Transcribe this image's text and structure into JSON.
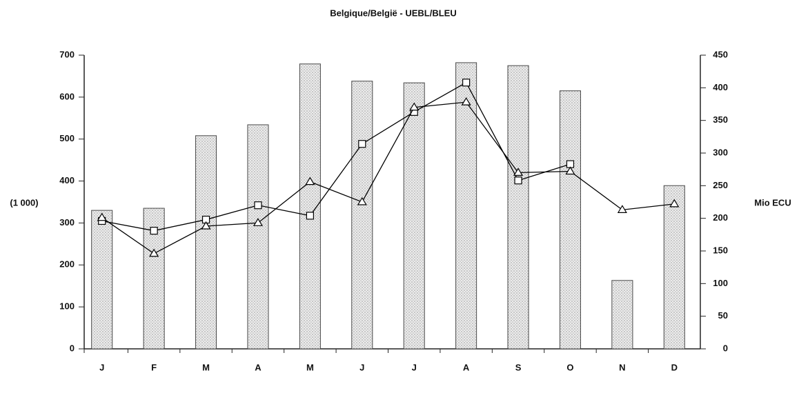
{
  "chart_data": {
    "type": "bar-line",
    "title": "Belgique/België - UEBL/BLEU",
    "y_label": "(1 000)",
    "y2_label": "Mio ECU",
    "categories": [
      "J",
      "F",
      "M",
      "A",
      "M",
      "J",
      "J",
      "A",
      "S",
      "O",
      "N",
      "D"
    ],
    "ylim": [
      0,
      700
    ],
    "yticks": [
      0,
      100,
      200,
      300,
      400,
      500,
      600,
      700
    ],
    "y2lim": [
      0,
      450
    ],
    "y2ticks": [
      0,
      50,
      100,
      150,
      200,
      250,
      300,
      350,
      400,
      450
    ],
    "series": [
      {
        "type": "bar",
        "color": "#d4d4d4",
        "values": [
          330,
          335,
          508,
          534,
          679,
          638,
          634,
          682,
          675,
          615,
          163,
          389
        ]
      },
      {
        "type": "line",
        "marker": "square",
        "axis": "y2",
        "color": "#000000",
        "values": [
          196,
          181,
          198,
          220,
          204,
          314,
          363,
          408,
          258,
          283,
          null,
          null
        ]
      },
      {
        "type": "line",
        "marker": "triangle",
        "axis": "y2",
        "color": "#000000",
        "values": [
          201,
          146,
          188,
          193,
          256,
          225,
          370,
          378,
          270,
          272,
          213,
          222
        ]
      }
    ]
  }
}
